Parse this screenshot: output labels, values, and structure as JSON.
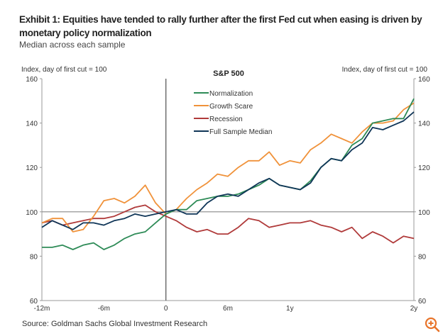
{
  "title": "Exhibit 1: Equities have tended to rally further after the first Fed cut when easing is driven by monetary policy normalization",
  "subtitle": "Median across each sample",
  "source": "Source: Goldman Sachs Global Investment Research",
  "zoom_icon": "zoom-in-icon",
  "chart_data": {
    "type": "line",
    "title": "S&P 500",
    "ylabel_left": "Index, day of first cut = 100",
    "ylabel_right": "Index, day of first cut = 100",
    "xlabel": "",
    "xlim": [
      -12,
      24
    ],
    "ylim": [
      60,
      160
    ],
    "yticks": [
      60,
      80,
      100,
      120,
      140,
      160
    ],
    "xticks": [
      {
        "v": -12,
        "label": "-12m"
      },
      {
        "v": -6,
        "label": "-6m"
      },
      {
        "v": 0,
        "label": "0"
      },
      {
        "v": 6,
        "label": "6m"
      },
      {
        "v": 12,
        "label": "1y"
      },
      {
        "v": 24,
        "label": "2y"
      }
    ],
    "reference_lines": {
      "y": 100,
      "x": 0
    },
    "legend_position": "top-center",
    "x_unit": "months from first cut",
    "x": [
      -12,
      -11,
      -10,
      -9,
      -8,
      -7,
      -6,
      -5,
      -4,
      -3,
      -2,
      -1,
      0,
      1,
      2,
      3,
      4,
      5,
      6,
      7,
      8,
      9,
      10,
      11,
      12,
      13,
      14,
      15,
      16,
      17,
      18,
      19,
      20,
      21,
      22,
      23,
      24
    ],
    "series": [
      {
        "name": "Normalization",
        "color": "#2e8b57",
        "values": [
          84,
          84,
          85,
          83,
          85,
          86,
          83,
          85,
          88,
          90,
          91,
          95,
          99,
          101,
          101,
          105,
          106,
          107,
          107,
          108,
          110,
          112,
          115,
          112,
          111,
          110,
          114,
          120,
          124,
          123,
          130,
          133,
          140,
          141,
          142,
          142,
          151
        ]
      },
      {
        "name": "Growth Scare",
        "color": "#f0923a",
        "values": [
          95,
          97,
          97,
          91,
          92,
          98,
          105,
          106,
          104,
          107,
          112,
          104,
          99,
          101,
          106,
          110,
          113,
          117,
          116,
          120,
          123,
          123,
          127,
          121,
          123,
          122,
          128,
          131,
          135,
          133,
          131,
          136,
          140,
          140,
          141,
          146,
          149
        ]
      },
      {
        "name": "Recession",
        "color": "#b03a3a",
        "values": [
          95,
          96,
          94,
          95,
          96,
          97,
          97,
          98,
          100,
          102,
          103,
          100,
          98,
          96,
          93,
          91,
          92,
          90,
          90,
          93,
          97,
          96,
          93,
          94,
          95,
          95,
          96,
          94,
          93,
          91,
          93,
          88,
          91,
          89,
          86,
          89,
          88
        ]
      },
      {
        "name": "Full Sample Median",
        "color": "#0f3557",
        "values": [
          93,
          96,
          94,
          92,
          95,
          95,
          94,
          96,
          97,
          99,
          98,
          99,
          100,
          101,
          99,
          99,
          104,
          107,
          108,
          107,
          110,
          113,
          115,
          112,
          111,
          110,
          113,
          120,
          124,
          123,
          128,
          131,
          138,
          137,
          139,
          141,
          145
        ]
      }
    ]
  }
}
